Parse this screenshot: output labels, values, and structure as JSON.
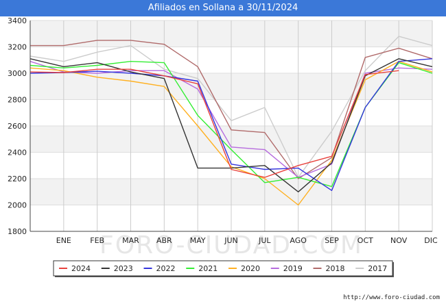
{
  "header": {
    "title": "Afiliados en Sollana a 30/11/2024"
  },
  "watermark": "FORO-CIUDAD.COM",
  "source_url": "http://www.foro-ciudad.com",
  "chart_data": {
    "type": "line",
    "title": "Afiliados en Sollana a 30/11/2024",
    "categories": [
      "",
      "ENE",
      "FEB",
      "MAR",
      "ABR",
      "MAY",
      "JUN",
      "JUL",
      "AGO",
      "SEP",
      "OCT",
      "NOV",
      "DIC"
    ],
    "yticks": [
      1800,
      2000,
      2200,
      2400,
      2600,
      2800,
      3000,
      3200,
      3400
    ],
    "ylim": [
      1800,
      3400
    ],
    "grid": true,
    "legend_position": "bottom",
    "series": [
      {
        "name": "2024",
        "color": "#e8413c",
        "values": [
          3010,
          3005,
          3030,
          3030,
          2980,
          2920,
          2270,
          2210,
          2300,
          2370,
          2990,
          3020,
          null
        ]
      },
      {
        "name": "2023",
        "color": "#333333",
        "values": [
          3110,
          3050,
          3080,
          3010,
          2960,
          2280,
          2280,
          2300,
          2100,
          2320,
          2980,
          3110,
          3050
        ]
      },
      {
        "name": "2022",
        "color": "#3333dd",
        "values": [
          3000,
          3005,
          3015,
          3000,
          2980,
          2940,
          2310,
          2270,
          2280,
          2110,
          2740,
          3090,
          3110
        ]
      },
      {
        "name": "2021",
        "color": "#33ee33",
        "values": [
          3060,
          3040,
          3060,
          3090,
          3080,
          2680,
          2420,
          2170,
          2210,
          2140,
          2740,
          3080,
          3000
        ]
      },
      {
        "name": "2020",
        "color": "#ffb020",
        "values": [
          3040,
          3020,
          2970,
          2940,
          2900,
          2600,
          2290,
          2200,
          2000,
          2340,
          2950,
          3090,
          3010
        ]
      },
      {
        "name": "2019",
        "color": "#b66bde",
        "values": [
          3090,
          3010,
          3000,
          3020,
          3020,
          2880,
          2440,
          2420,
          2210,
          2310,
          3000,
          3040,
          3030
        ]
      },
      {
        "name": "2018",
        "color": "#b06a6a",
        "values": [
          3210,
          3210,
          3250,
          3250,
          3220,
          3050,
          2570,
          2550,
          2200,
          2360,
          3120,
          3190,
          3110
        ]
      },
      {
        "name": "2017",
        "color": "#cccccc",
        "values": [
          3130,
          3090,
          3160,
          3210,
          3030,
          2960,
          2640,
          2740,
          2210,
          2560,
          3020,
          3280,
          3210
        ]
      }
    ]
  }
}
